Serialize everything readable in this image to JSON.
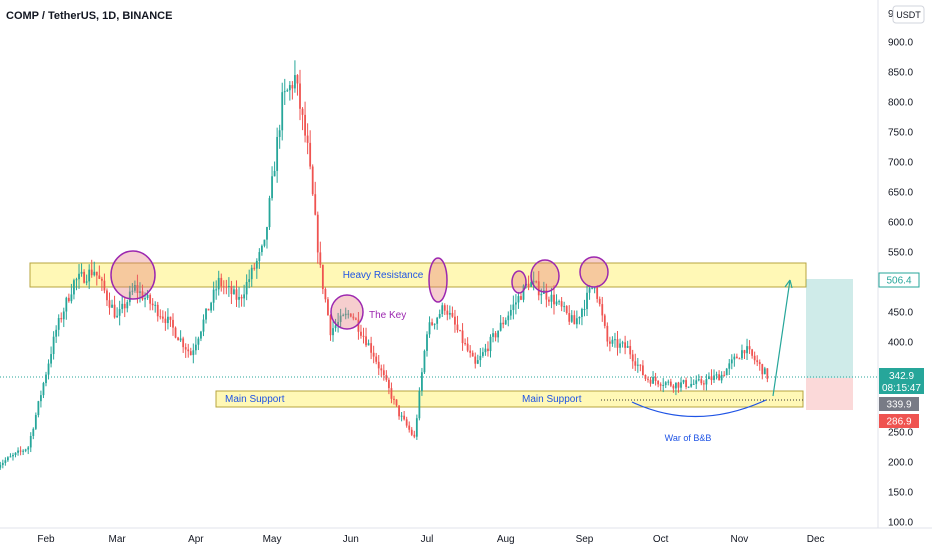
{
  "header": {
    "title": "COMP / TetherUS, 1D, BINANCE"
  },
  "price_scale": {
    "currency_button": "USDT",
    "top_clipped_label": "9"
  },
  "tags": {
    "resistance_price": "506.4",
    "last_price": "342.9",
    "countdown": "08:15:47",
    "support_price": "339.9",
    "stop_price": "286.9"
  },
  "annotations": {
    "heavy_resistance": "Heavy Resistance",
    "the_key": "The Key",
    "main_support_left": "Main Support",
    "main_support_right": "Main Support",
    "war_of_bnb": "War of B&B"
  },
  "colors": {
    "up": "#26a69a",
    "down": "#ef5350",
    "zone_fill": "#fff59d",
    "circle": "#9c27b0",
    "label_blue": "#1e53e5"
  },
  "chart_data": {
    "type": "candlestick",
    "title": "COMP / TetherUS, 1D, BINANCE",
    "x_ticks": [
      "Feb",
      "Mar",
      "Apr",
      "May",
      "Jun",
      "Jul",
      "Aug",
      "Sep",
      "Oct",
      "Nov",
      "Dec"
    ],
    "y_ticks": [
      100,
      150,
      200,
      250,
      300,
      350,
      400,
      450,
      500,
      550,
      600,
      650,
      700,
      750,
      800,
      850,
      900
    ],
    "ylim": [
      100,
      920
    ],
    "approx_close_path": [
      [
        "2021-01-13",
        195
      ],
      [
        "2021-01-25",
        225
      ],
      [
        "2021-02-05",
        420
      ],
      [
        "2021-02-12",
        500
      ],
      [
        "2021-02-20",
        520
      ],
      [
        "2021-03-01",
        440
      ],
      [
        "2021-03-08",
        490
      ],
      [
        "2021-03-20",
        440
      ],
      [
        "2021-03-30",
        380
      ],
      [
        "2021-04-10",
        500
      ],
      [
        "2021-04-18",
        470
      ],
      [
        "2021-04-28",
        560
      ],
      [
        "2021-05-05",
        800
      ],
      [
        "2021-05-10",
        840
      ],
      [
        "2021-05-15",
        720
      ],
      [
        "2021-05-20",
        520
      ],
      [
        "2021-05-24",
        420
      ],
      [
        "2021-06-01",
        450
      ],
      [
        "2021-06-10",
        380
      ],
      [
        "2021-06-20",
        280
      ],
      [
        "2021-06-26",
        240
      ],
      [
        "2021-07-01",
        420
      ],
      [
        "2021-07-08",
        460
      ],
      [
        "2021-07-20",
        360
      ],
      [
        "2021-08-01",
        440
      ],
      [
        "2021-08-10",
        500
      ],
      [
        "2021-08-20",
        470
      ],
      [
        "2021-08-28",
        430
      ],
      [
        "2021-09-05",
        500
      ],
      [
        "2021-09-10",
        400
      ],
      [
        "2021-09-18",
        390
      ],
      [
        "2021-09-25",
        340
      ],
      [
        "2021-10-05",
        330
      ],
      [
        "2021-10-15",
        330
      ],
      [
        "2021-10-25",
        345
      ],
      [
        "2021-11-03",
        390
      ],
      [
        "2021-11-08",
        365
      ],
      [
        "2021-11-12",
        343
      ]
    ],
    "zones": [
      {
        "label": "Heavy Resistance",
        "from": 494,
        "to": 530
      },
      {
        "label": "Main Support",
        "from": 318,
        "to": 342
      }
    ],
    "horizontal_lines": [
      {
        "price": 342.9,
        "label": "last price"
      },
      {
        "price": 330,
        "style": "dotted"
      }
    ],
    "position": {
      "entry": 342.9,
      "target": 506.4,
      "stop": 286.9
    },
    "grid": false,
    "legend": "none"
  }
}
